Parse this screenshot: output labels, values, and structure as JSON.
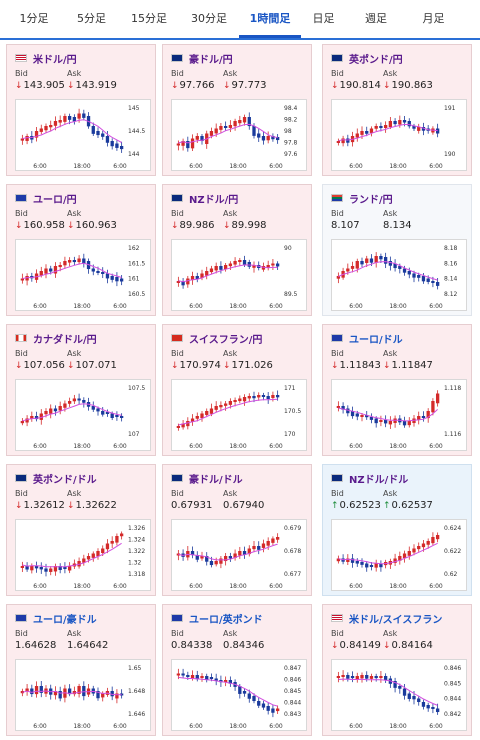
{
  "tabs": [
    {
      "label": "1分足",
      "active": false
    },
    {
      "label": "5分足",
      "active": false
    },
    {
      "label": "15分足",
      "active": false
    },
    {
      "label": "30分足",
      "active": false
    },
    {
      "label": "1時間足",
      "active": true
    },
    {
      "label": "日足",
      "active": false
    },
    {
      "label": "週足",
      "active": false
    },
    {
      "label": "月足",
      "active": false
    }
  ],
  "bid_label": "Bid",
  "ask_label": "Ask",
  "cards": [
    {
      "pair": "米ドル/円",
      "flag": "us",
      "bid": "143.905",
      "ask": "143.919",
      "dir": "down",
      "chart_data": {
        "type": "candlestick",
        "y_ticks": [
          "145",
          "144.5",
          "144"
        ],
        "x_ticks": [
          "6:00",
          "18:00",
          "6:00"
        ],
        "trend": [
          0.35,
          0.4,
          0.38,
          0.5,
          0.55,
          0.6,
          0.62,
          0.7,
          0.72,
          0.8,
          0.78,
          0.75,
          0.85,
          0.8,
          0.6,
          0.5,
          0.45,
          0.4,
          0.3,
          0.25,
          0.2,
          0.15
        ]
      }
    },
    {
      "pair": "豪ドル/円",
      "flag": "au",
      "bid": "97.766",
      "ask": "97.773",
      "dir": "down",
      "chart_data": {
        "type": "candlestick",
        "y_ticks": [
          "98.4",
          "98.2",
          "98",
          "97.8",
          "97.6"
        ],
        "x_ticks": [
          "6:00",
          "18:00",
          "6:00"
        ],
        "trend": [
          0.25,
          0.3,
          0.2,
          0.35,
          0.4,
          0.3,
          0.45,
          0.5,
          0.55,
          0.6,
          0.58,
          0.62,
          0.7,
          0.72,
          0.78,
          0.6,
          0.45,
          0.4,
          0.35,
          0.4,
          0.38,
          0.35
        ]
      }
    },
    {
      "pair": "英ポンド/円",
      "flag": "uk",
      "bid": "190.814",
      "ask": "190.863",
      "dir": "down",
      "chart_data": {
        "type": "candlestick",
        "y_ticks": [
          "191",
          "190"
        ],
        "x_ticks": [
          "6:00",
          "18:00",
          "6:00"
        ],
        "trend": [
          0.3,
          0.35,
          0.3,
          0.4,
          0.45,
          0.5,
          0.48,
          0.55,
          0.6,
          0.58,
          0.62,
          0.7,
          0.68,
          0.72,
          0.7,
          0.6,
          0.55,
          0.58,
          0.55,
          0.52,
          0.55,
          0.5
        ]
      }
    },
    {
      "pair": "ユーロ/円",
      "flag": "eu",
      "bid": "160.958",
      "ask": "160.963",
      "dir": "down",
      "chart_data": {
        "type": "candlestick",
        "y_ticks": [
          "162",
          "161.5",
          "161",
          "160.5"
        ],
        "x_ticks": [
          "6:00",
          "18:00",
          "6:00"
        ],
        "trend": [
          0.35,
          0.4,
          0.38,
          0.45,
          0.5,
          0.55,
          0.5,
          0.6,
          0.62,
          0.7,
          0.72,
          0.68,
          0.75,
          0.7,
          0.55,
          0.5,
          0.48,
          0.45,
          0.4,
          0.38,
          0.35,
          0.3
        ]
      }
    },
    {
      "pair": "NZドル/円",
      "flag": "nz",
      "bid": "89.986",
      "ask": "89.998",
      "dir": "down",
      "chart_data": {
        "type": "candlestick",
        "y_ticks": [
          "90",
          "89.5"
        ],
        "x_ticks": [
          "6:00",
          "18:00",
          "6:00"
        ],
        "trend": [
          0.3,
          0.25,
          0.35,
          0.4,
          0.38,
          0.45,
          0.5,
          0.55,
          0.6,
          0.58,
          0.62,
          0.65,
          0.7,
          0.72,
          0.68,
          0.6,
          0.62,
          0.58,
          0.6,
          0.62,
          0.65,
          0.62
        ]
      }
    },
    {
      "pair": "ランド/円",
      "flag": "za",
      "bid": "8.107",
      "ask": "8.134",
      "dir": "none",
      "chart_data": {
        "type": "candlestick",
        "y_ticks": [
          "8.18",
          "8.16",
          "8.14",
          "8.12"
        ],
        "x_ticks": [
          "6:00",
          "18:00",
          "6:00"
        ],
        "trend": [
          0.4,
          0.5,
          0.55,
          0.6,
          0.7,
          0.68,
          0.75,
          0.72,
          0.8,
          0.78,
          0.7,
          0.65,
          0.6,
          0.55,
          0.5,
          0.45,
          0.42,
          0.4,
          0.35,
          0.3,
          0.28,
          0.25
        ]
      }
    },
    {
      "pair": "カナダドル/円",
      "flag": "ca",
      "bid": "107.056",
      "ask": "107.071",
      "dir": "down",
      "chart_data": {
        "type": "candlestick",
        "y_ticks": [
          "107.5",
          "107"
        ],
        "x_ticks": [
          "6:00",
          "18:00",
          "6:00"
        ],
        "trend": [
          0.3,
          0.35,
          0.4,
          0.38,
          0.45,
          0.5,
          0.55,
          0.52,
          0.6,
          0.65,
          0.7,
          0.75,
          0.72,
          0.68,
          0.6,
          0.55,
          0.5,
          0.48,
          0.45,
          0.42,
          0.4,
          0.38
        ]
      }
    },
    {
      "pair": "スイスフラン/円",
      "flag": "ch",
      "bid": "170.974",
      "ask": "171.026",
      "dir": "down",
      "chart_data": {
        "type": "candlestick",
        "y_ticks": [
          "171",
          "170.5",
          "170"
        ],
        "x_ticks": [
          "6:00",
          "18:00",
          "6:00"
        ],
        "trend": [
          0.2,
          0.25,
          0.3,
          0.35,
          0.4,
          0.45,
          0.5,
          0.55,
          0.6,
          0.62,
          0.65,
          0.7,
          0.72,
          0.75,
          0.78,
          0.8,
          0.78,
          0.82,
          0.8,
          0.78,
          0.82,
          0.8
        ]
      }
    },
    {
      "pair": "ユーロ/ドル",
      "flag": "eu-us",
      "bid": "1.11843",
      "ask": "1.11847",
      "dir": "down",
      "blue": true,
      "chart_data": {
        "type": "candlestick",
        "y_ticks": [
          "1.118",
          "1.116"
        ],
        "x_ticks": [
          "6:00",
          "18:00",
          "6:00"
        ],
        "trend": [
          0.6,
          0.55,
          0.5,
          0.45,
          0.4,
          0.42,
          0.38,
          0.35,
          0.3,
          0.32,
          0.28,
          0.3,
          0.35,
          0.3,
          0.25,
          0.3,
          0.35,
          0.4,
          0.38,
          0.5,
          0.7,
          0.85
        ]
      }
    },
    {
      "pair": "英ポンド/ドル",
      "flag": "uk-us",
      "bid": "1.32612",
      "ask": "1.32622",
      "dir": "down",
      "chart_data": {
        "type": "candlestick",
        "y_ticks": [
          "1.326",
          "1.324",
          "1.322",
          "1.32",
          "1.318"
        ],
        "x_ticks": [
          "6:00",
          "18:00",
          "6:00"
        ],
        "trend": [
          0.2,
          0.15,
          0.2,
          0.18,
          0.15,
          0.12,
          0.15,
          0.2,
          0.18,
          0.15,
          0.2,
          0.25,
          0.3,
          0.35,
          0.4,
          0.45,
          0.5,
          0.55,
          0.65,
          0.7,
          0.8,
          0.85
        ]
      }
    },
    {
      "pair": "豪ドル/ドル",
      "flag": "au-us",
      "bid": "0.67931",
      "ask": "0.67940",
      "dir": "none",
      "chart_data": {
        "type": "candlestick",
        "y_ticks": [
          "0.679",
          "0.678",
          "0.677"
        ],
        "x_ticks": [
          "6:00",
          "18:00",
          "6:00"
        ],
        "trend": [
          0.45,
          0.4,
          0.5,
          0.42,
          0.35,
          0.4,
          0.3,
          0.25,
          0.3,
          0.35,
          0.4,
          0.38,
          0.45,
          0.5,
          0.48,
          0.55,
          0.6,
          0.58,
          0.65,
          0.7,
          0.75,
          0.78
        ]
      }
    },
    {
      "pair": "NZドル/ドル",
      "flag": "nz-us",
      "bid": "0.62523",
      "ask": "0.62537",
      "dir": "up",
      "up": true,
      "chart_data": {
        "type": "candlestick",
        "y_ticks": [
          "0.624",
          "0.622",
          "0.62"
        ],
        "x_ticks": [
          "6:00",
          "18:00",
          "6:00"
        ],
        "trend": [
          0.35,
          0.3,
          0.35,
          0.3,
          0.28,
          0.25,
          0.22,
          0.2,
          0.25,
          0.22,
          0.28,
          0.3,
          0.35,
          0.4,
          0.45,
          0.5,
          0.55,
          0.6,
          0.65,
          0.7,
          0.78,
          0.82
        ]
      }
    },
    {
      "pair": "ユーロ/豪ドル",
      "flag": "eu-au",
      "bid": "1.64628",
      "ask": "1.64642",
      "dir": "none",
      "blue": true,
      "chart_data": {
        "type": "candlestick",
        "y_ticks": [
          "1.65",
          "1.648",
          "1.646"
        ],
        "x_ticks": [
          "6:00",
          "18:00",
          "6:00"
        ],
        "trend": [
          0.5,
          0.55,
          0.45,
          0.6,
          0.5,
          0.55,
          0.45,
          0.5,
          0.4,
          0.55,
          0.45,
          0.5,
          0.6,
          0.45,
          0.55,
          0.5,
          0.4,
          0.45,
          0.5,
          0.4,
          0.45,
          0.42
        ]
      }
    },
    {
      "pair": "ユーロ/英ポンド",
      "flag": "eu-uk",
      "bid": "0.84338",
      "ask": "0.84346",
      "dir": "none",
      "blue": true,
      "chart_data": {
        "type": "candlestick",
        "y_ticks": [
          "0.847",
          "0.846",
          "0.845",
          "0.844",
          "0.843"
        ],
        "x_ticks": [
          "6:00",
          "18:00",
          "6:00"
        ],
        "trend": [
          0.85,
          0.82,
          0.8,
          0.82,
          0.78,
          0.8,
          0.78,
          0.75,
          0.72,
          0.7,
          0.72,
          0.68,
          0.6,
          0.5,
          0.45,
          0.4,
          0.3,
          0.25,
          0.2,
          0.15,
          0.12,
          0.15
        ]
      }
    },
    {
      "pair": "米ドル/スイスフラン",
      "flag": "us-ch",
      "bid": "0.84149",
      "ask": "0.84164",
      "dir": "down",
      "blue": true,
      "chart_data": {
        "type": "candlestick",
        "y_ticks": [
          "0.846",
          "0.845",
          "0.844",
          "0.842"
        ],
        "x_ticks": [
          "6:00",
          "18:00",
          "6:00"
        ],
        "trend": [
          0.8,
          0.82,
          0.8,
          0.78,
          0.8,
          0.82,
          0.78,
          0.8,
          0.78,
          0.8,
          0.75,
          0.7,
          0.6,
          0.55,
          0.45,
          0.4,
          0.35,
          0.28,
          0.22,
          0.18,
          0.15,
          0.12
        ]
      }
    }
  ],
  "colors": {
    "candle_up": "#d42a2a",
    "candle_down": "#1a3a9c",
    "ma_line": "#d24fe0",
    "tab_active": "#1a56c4"
  }
}
